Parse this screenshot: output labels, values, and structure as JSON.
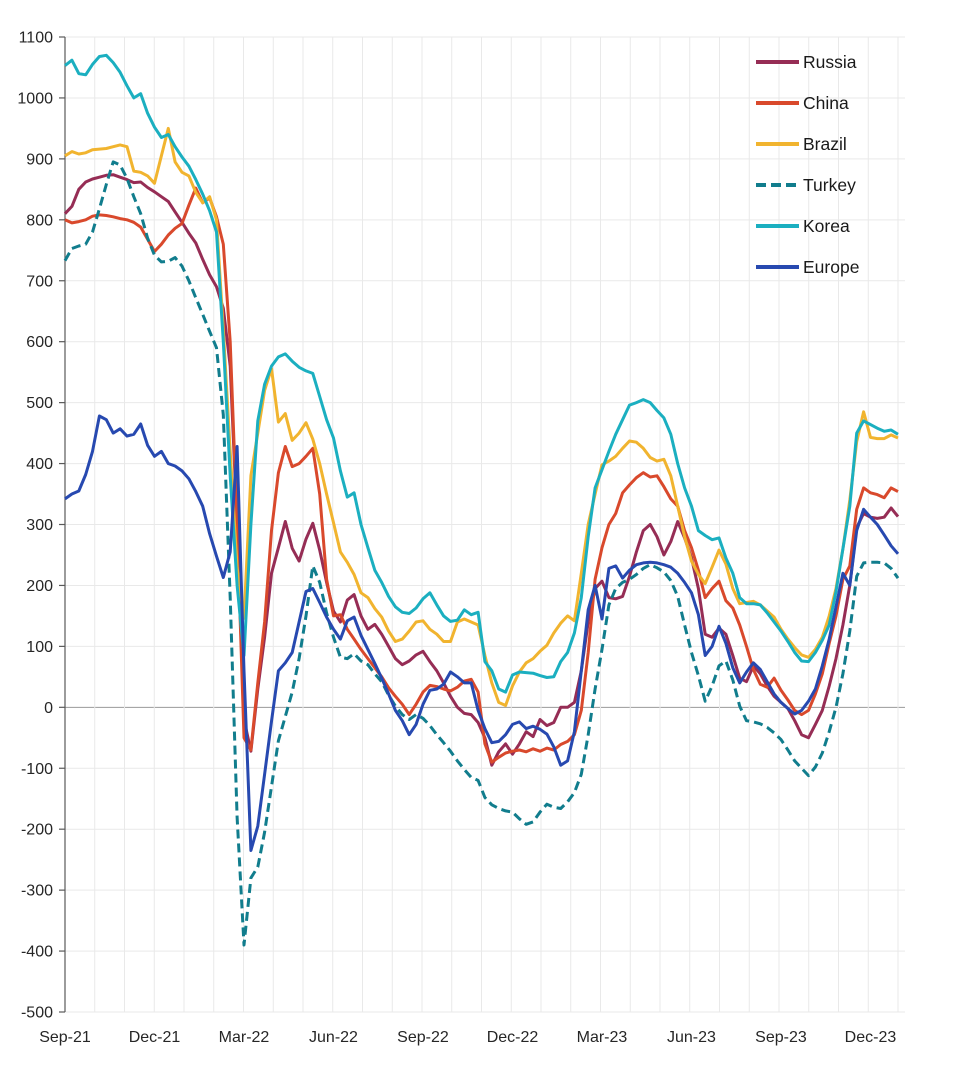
{
  "chart_data": {
    "type": "line",
    "title": "",
    "frequency": "weekly",
    "weeks_total": 122,
    "months_total": 28,
    "x_axis": {
      "tick_labels": [
        "Sep-21",
        "Dec-21",
        "Mar-22",
        "Jun-22",
        "Sep-22",
        "Dec-22",
        "Mar-23",
        "Jun-23",
        "Sep-23",
        "Dec-23"
      ],
      "tick_week_positions": [
        0,
        13,
        26,
        39,
        52,
        65,
        78,
        91,
        104,
        117
      ],
      "gridlines": "monthly"
    },
    "y_axis": {
      "min": -500,
      "max": 1100,
      "step": 100,
      "tick_labels": [
        "-500",
        "-400",
        "-300",
        "-200",
        "-100",
        "0",
        "100",
        "200",
        "300",
        "400",
        "500",
        "600",
        "700",
        "800",
        "900",
        "1000",
        "1100"
      ]
    },
    "legend_position": "top-right",
    "zero_line": true,
    "grid_on": true,
    "series": [
      {
        "name": "Russia",
        "color": "#962D55",
        "dash": false,
        "values": [
          810,
          822,
          850,
          862,
          867,
          870,
          873,
          874,
          870,
          866,
          861,
          862,
          853,
          846,
          838,
          830,
          813,
          796,
          778,
          762,
          735,
          710,
          690,
          655,
          560,
          300,
          -20,
          -72,
          30,
          115,
          220,
          262,
          305,
          261,
          240,
          276,
          302,
          258,
          205,
          158,
          140,
          176,
          185,
          150,
          128,
          136,
          120,
          100,
          80,
          70,
          76,
          86,
          92,
          75,
          60,
          40,
          18,
          0,
          -10,
          -12,
          -25,
          -50,
          -95,
          -73,
          -60,
          -77,
          -60,
          -40,
          -48,
          -20,
          -30,
          -25,
          0,
          0,
          8,
          60,
          140,
          195,
          207,
          180,
          178,
          182,
          215,
          255,
          290,
          300,
          280,
          250,
          272,
          305,
          278,
          245,
          195,
          120,
          115,
          130,
          120,
          85,
          48,
          42,
          68,
          55,
          35,
          18,
          8,
          -2,
          -22,
          -45,
          -50,
          -28,
          -5,
          35,
          80,
          135,
          200,
          295,
          318,
          312,
          310,
          312,
          327,
          313
        ]
      },
      {
        "name": "China",
        "color": "#D9492C",
        "dash": false,
        "values": [
          800,
          795,
          797,
          800,
          806,
          808,
          807,
          805,
          802,
          800,
          796,
          788,
          768,
          748,
          760,
          775,
          786,
          794,
          824,
          852,
          828,
          836,
          805,
          760,
          600,
          300,
          -50,
          -70,
          40,
          140,
          290,
          385,
          428,
          395,
          400,
          412,
          425,
          350,
          210,
          150,
          152,
          128,
          112,
          95,
          80,
          65,
          50,
          32,
          18,
          5,
          -12,
          5,
          25,
          36,
          34,
          30,
          27,
          33,
          43,
          46,
          25,
          -60,
          -90,
          -82,
          -75,
          -72,
          -70,
          -73,
          -68,
          -72,
          -67,
          -70,
          -61,
          -56,
          -45,
          -5,
          90,
          210,
          262,
          300,
          318,
          352,
          365,
          377,
          385,
          378,
          380,
          362,
          342,
          330,
          290,
          262,
          225,
          180,
          195,
          207,
          175,
          163,
          135,
          100,
          62,
          38,
          33,
          48,
          28,
          12,
          -5,
          -12,
          -5,
          22,
          55,
          105,
          150,
          210,
          232,
          325,
          360,
          352,
          349,
          344,
          360,
          354
        ]
      },
      {
        "name": "Brazil",
        "color": "#F1B42F",
        "dash": false,
        "values": [
          905,
          912,
          908,
          910,
          915,
          916,
          917,
          920,
          923,
          920,
          880,
          878,
          872,
          860,
          905,
          950,
          895,
          878,
          872,
          845,
          828,
          838,
          800,
          620,
          420,
          230,
          146,
          380,
          450,
          520,
          556,
          468,
          482,
          438,
          450,
          467,
          440,
          400,
          350,
          303,
          255,
          238,
          218,
          188,
          180,
          162,
          148,
          125,
          108,
          112,
          125,
          140,
          142,
          128,
          120,
          108,
          108,
          140,
          145,
          140,
          135,
          85,
          40,
          8,
          3,
          35,
          58,
          73,
          80,
          92,
          102,
          122,
          138,
          150,
          142,
          220,
          300,
          350,
          398,
          404,
          412,
          425,
          437,
          435,
          425,
          410,
          404,
          407,
          380,
          330,
          280,
          240,
          218,
          203,
          230,
          258,
          235,
          195,
          170,
          172,
          174,
          168,
          158,
          148,
          128,
          112,
          98,
          86,
          82,
          95,
          115,
          150,
          195,
          260,
          340,
          436,
          485,
          443,
          441,
          441,
          447,
          442
        ]
      },
      {
        "name": "Turkey",
        "color": "#117D8D",
        "dash": true,
        "values": [
          733,
          753,
          757,
          760,
          780,
          818,
          858,
          895,
          890,
          868,
          838,
          810,
          770,
          742,
          731,
          732,
          738,
          724,
          700,
          672,
          645,
          617,
          590,
          480,
          180,
          -180,
          -390,
          -280,
          -262,
          -205,
          -130,
          -55,
          -15,
          25,
          80,
          150,
          232,
          205,
          155,
          115,
          82,
          80,
          88,
          76,
          70,
          55,
          42,
          20,
          2,
          -12,
          -20,
          -12,
          -18,
          -30,
          -45,
          -58,
          -72,
          -88,
          -102,
          -115,
          -120,
          -148,
          -160,
          -166,
          -170,
          -172,
          -183,
          -192,
          -188,
          -172,
          -159,
          -164,
          -166,
          -155,
          -140,
          -110,
          -45,
          30,
          95,
          168,
          195,
          205,
          210,
          218,
          228,
          234,
          229,
          222,
          208,
          182,
          135,
          90,
          52,
          10,
          35,
          68,
          76,
          45,
          2,
          -22,
          -24,
          -27,
          -33,
          -42,
          -53,
          -70,
          -88,
          -100,
          -112,
          -98,
          -75,
          -40,
          0,
          55,
          125,
          215,
          237,
          238,
          238,
          237,
          228,
          212
        ]
      },
      {
        "name": "Korea",
        "color": "#1BAFC0",
        "dash": false,
        "values": [
          1053,
          1062,
          1040,
          1038,
          1055,
          1068,
          1070,
          1058,
          1042,
          1020,
          1000,
          1007,
          975,
          952,
          935,
          940,
          920,
          903,
          888,
          866,
          842,
          815,
          780,
          600,
          380,
          200,
          85,
          300,
          470,
          530,
          560,
          575,
          580,
          568,
          558,
          552,
          548,
          510,
          472,
          442,
          388,
          345,
          352,
          300,
          262,
          225,
          205,
          182,
          165,
          156,
          154,
          163,
          178,
          188,
          168,
          150,
          141,
          143,
          160,
          152,
          156,
          75,
          60,
          30,
          25,
          53,
          58,
          57,
          56,
          52,
          49,
          50,
          75,
          90,
          122,
          180,
          280,
          360,
          390,
          420,
          448,
          472,
          496,
          500,
          505,
          500,
          487,
          475,
          448,
          400,
          360,
          330,
          290,
          282,
          275,
          278,
          245,
          220,
          180,
          170,
          170,
          168,
          155,
          140,
          125,
          108,
          90,
          76,
          75,
          90,
          110,
          135,
          190,
          260,
          330,
          450,
          470,
          464,
          458,
          453,
          455,
          448
        ]
      },
      {
        "name": "Europe",
        "color": "#2749B0",
        "dash": false,
        "values": [
          342,
          350,
          355,
          382,
          420,
          478,
          472,
          450,
          457,
          445,
          448,
          465,
          430,
          412,
          420,
          400,
          396,
          388,
          375,
          354,
          330,
          285,
          248,
          213,
          255,
          428,
          60,
          -235,
          -195,
          -110,
          -23,
          60,
          73,
          90,
          140,
          190,
          195,
          172,
          148,
          128,
          112,
          142,
          148,
          118,
          95,
          72,
          48,
          22,
          -5,
          -22,
          -45,
          -28,
          5,
          28,
          30,
          38,
          58,
          50,
          40,
          40,
          -5,
          -35,
          -58,
          -56,
          -45,
          -28,
          -24,
          -35,
          -31,
          -36,
          -44,
          -65,
          -95,
          -88,
          -40,
          60,
          160,
          200,
          145,
          228,
          232,
          212,
          225,
          234,
          237,
          238,
          237,
          234,
          230,
          220,
          205,
          188,
          152,
          85,
          100,
          133,
          105,
          65,
          40,
          58,
          73,
          62,
          42,
          22,
          8,
          -2,
          -11,
          -5,
          10,
          30,
          68,
          112,
          165,
          220,
          200,
          290,
          325,
          312,
          300,
          283,
          265,
          252
        ]
      }
    ]
  },
  "style": {
    "grid_color": "#e9e9e9",
    "zero_line_color": "#9a9a9a",
    "axis_spine_color": "#595959",
    "tick_text_color": "#262626",
    "legend_text_color": "#1a1a1a",
    "background": "#ffffff"
  }
}
